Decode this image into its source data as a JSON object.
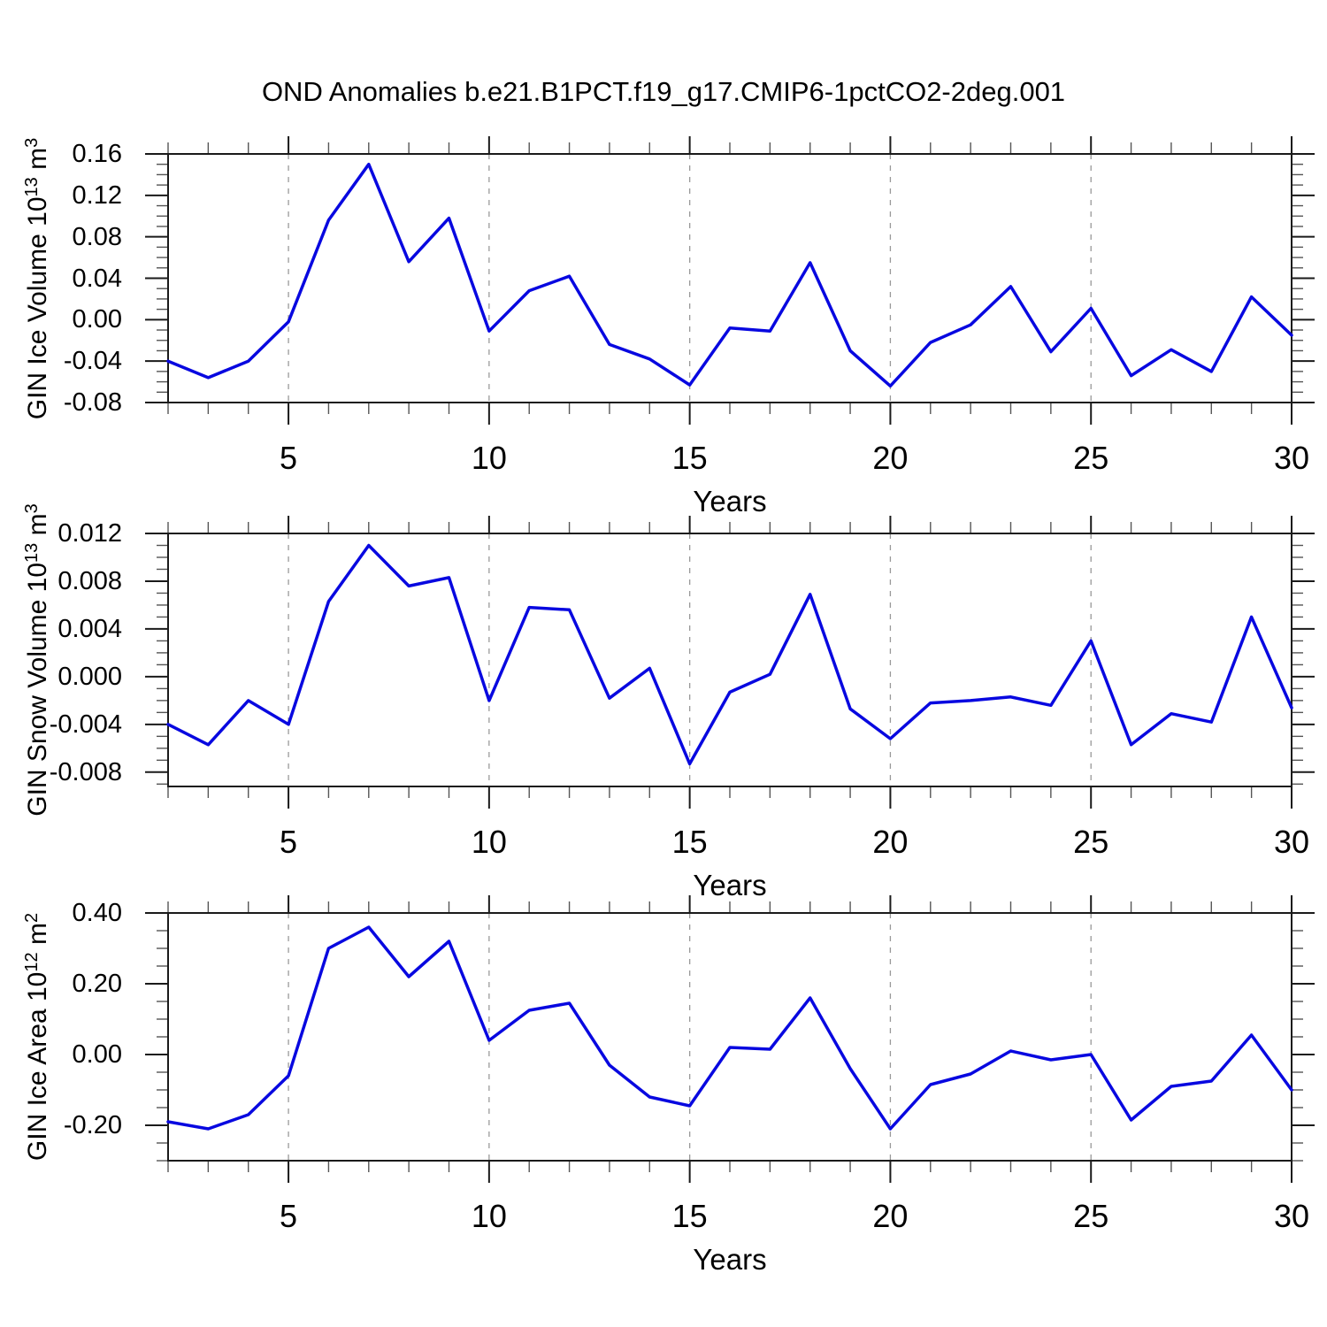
{
  "title": "OND Anomalies b.e21.B1PCT.f19_g17.CMIP6-1pctCO2-2deg.001",
  "line_color": "#0808e0",
  "grid_color": "#999999",
  "frame_color": "#1a1a1a",
  "minor_tick_color": "#555555",
  "chart_data": [
    {
      "type": "line",
      "ylabel": {
        "name": "GIN Ice Volume",
        "base": "10",
        "exp": "13",
        "unit": "m",
        "unit_exp": "3"
      },
      "xlabel": "Years",
      "xlim": [
        2,
        30
      ],
      "ylim": [
        -0.08,
        0.16
      ],
      "x": [
        2,
        3,
        4,
        5,
        6,
        7,
        8,
        9,
        10,
        11,
        12,
        13,
        14,
        15,
        16,
        17,
        18,
        19,
        20,
        21,
        22,
        23,
        24,
        25,
        26,
        27,
        28,
        29,
        30
      ],
      "values": [
        -0.04,
        -0.056,
        -0.04,
        -0.002,
        0.096,
        0.15,
        0.056,
        0.098,
        -0.011,
        0.028,
        0.042,
        -0.024,
        -0.038,
        -0.063,
        -0.008,
        -0.011,
        0.055,
        -0.03,
        -0.064,
        -0.022,
        -0.005,
        0.032,
        -0.031,
        0.011,
        -0.054,
        -0.029,
        -0.05,
        0.022,
        -0.015
      ],
      "yticks": {
        "labels": [
          "0.16",
          "0.12",
          "0.08",
          "0.04",
          "0.00",
          "-0.04",
          "-0.08"
        ],
        "values": [
          0.16,
          0.12,
          0.08,
          0.04,
          0.0,
          -0.04,
          -0.08
        ]
      },
      "yminor_step": 0.01,
      "xticks": {
        "labels": [
          "5",
          "10",
          "15",
          "20",
          "25",
          "30"
        ],
        "values": [
          5,
          10,
          15,
          20,
          25,
          30
        ]
      },
      "xminor_step": 1,
      "grid_x": [
        5,
        10,
        15,
        20,
        25
      ],
      "grid_dashed": true
    },
    {
      "type": "line",
      "ylabel": {
        "name": "GIN Snow Volume",
        "base": "10",
        "exp": "13",
        "unit": "m",
        "unit_exp": "3"
      },
      "xlabel": "Years",
      "xlim": [
        2,
        30
      ],
      "ylim": [
        -0.0092,
        0.012
      ],
      "x": [
        2,
        3,
        4,
        5,
        6,
        7,
        8,
        9,
        10,
        11,
        12,
        13,
        14,
        15,
        16,
        17,
        18,
        19,
        20,
        21,
        22,
        23,
        24,
        25,
        26,
        27,
        28,
        29,
        30
      ],
      "values": [
        -0.004,
        -0.0057,
        -0.002,
        -0.004,
        0.0063,
        0.011,
        0.0076,
        0.0083,
        -0.002,
        0.0058,
        0.0056,
        -0.0018,
        0.0007,
        -0.0073,
        -0.0013,
        0.0002,
        0.0069,
        -0.0027,
        -0.0052,
        -0.0022,
        -0.002,
        -0.0017,
        -0.0024,
        0.003,
        -0.0057,
        -0.0031,
        -0.0038,
        0.005,
        -0.0026
      ],
      "yticks": {
        "labels": [
          "0.012",
          "0.008",
          "0.004",
          "0.000",
          "-0.004",
          "-0.008"
        ],
        "values": [
          0.012,
          0.008,
          0.004,
          0.0,
          -0.004,
          -0.008
        ]
      },
      "yminor_step": 0.001,
      "xticks": {
        "labels": [
          "5",
          "10",
          "15",
          "20",
          "25",
          "30"
        ],
        "values": [
          5,
          10,
          15,
          20,
          25,
          30
        ]
      },
      "xminor_step": 1,
      "grid_x": [
        5,
        10,
        15,
        20,
        25
      ],
      "grid_dashed": true
    },
    {
      "type": "line",
      "ylabel": {
        "name": "GIN Ice Area",
        "base": "10",
        "exp": "12",
        "unit": "m",
        "unit_exp": "2"
      },
      "xlabel": "Years",
      "xlim": [
        2,
        30
      ],
      "ylim": [
        -0.3,
        0.4
      ],
      "x": [
        2,
        3,
        4,
        5,
        6,
        7,
        8,
        9,
        10,
        11,
        12,
        13,
        14,
        15,
        16,
        17,
        18,
        19,
        20,
        21,
        22,
        23,
        24,
        25,
        26,
        27,
        28,
        29,
        30
      ],
      "values": [
        -0.19,
        -0.21,
        -0.17,
        -0.06,
        0.3,
        0.36,
        0.22,
        0.32,
        0.04,
        0.125,
        0.145,
        -0.03,
        -0.12,
        -0.145,
        0.02,
        0.015,
        0.16,
        -0.04,
        -0.21,
        -0.085,
        -0.055,
        0.01,
        -0.015,
        0.0,
        -0.185,
        -0.09,
        -0.075,
        0.055,
        -0.1
      ],
      "yticks": {
        "labels": [
          "0.40",
          "0.20",
          "0.00",
          "-0.20"
        ],
        "values": [
          0.4,
          0.2,
          0.0,
          -0.2
        ]
      },
      "yminor_step": 0.05,
      "xticks": {
        "labels": [
          "5",
          "10",
          "15",
          "20",
          "25",
          "30"
        ],
        "values": [
          5,
          10,
          15,
          20,
          25,
          30
        ]
      },
      "xminor_step": 1,
      "grid_x": [
        5,
        10,
        15,
        20,
        25
      ],
      "grid_dashed": true
    }
  ]
}
